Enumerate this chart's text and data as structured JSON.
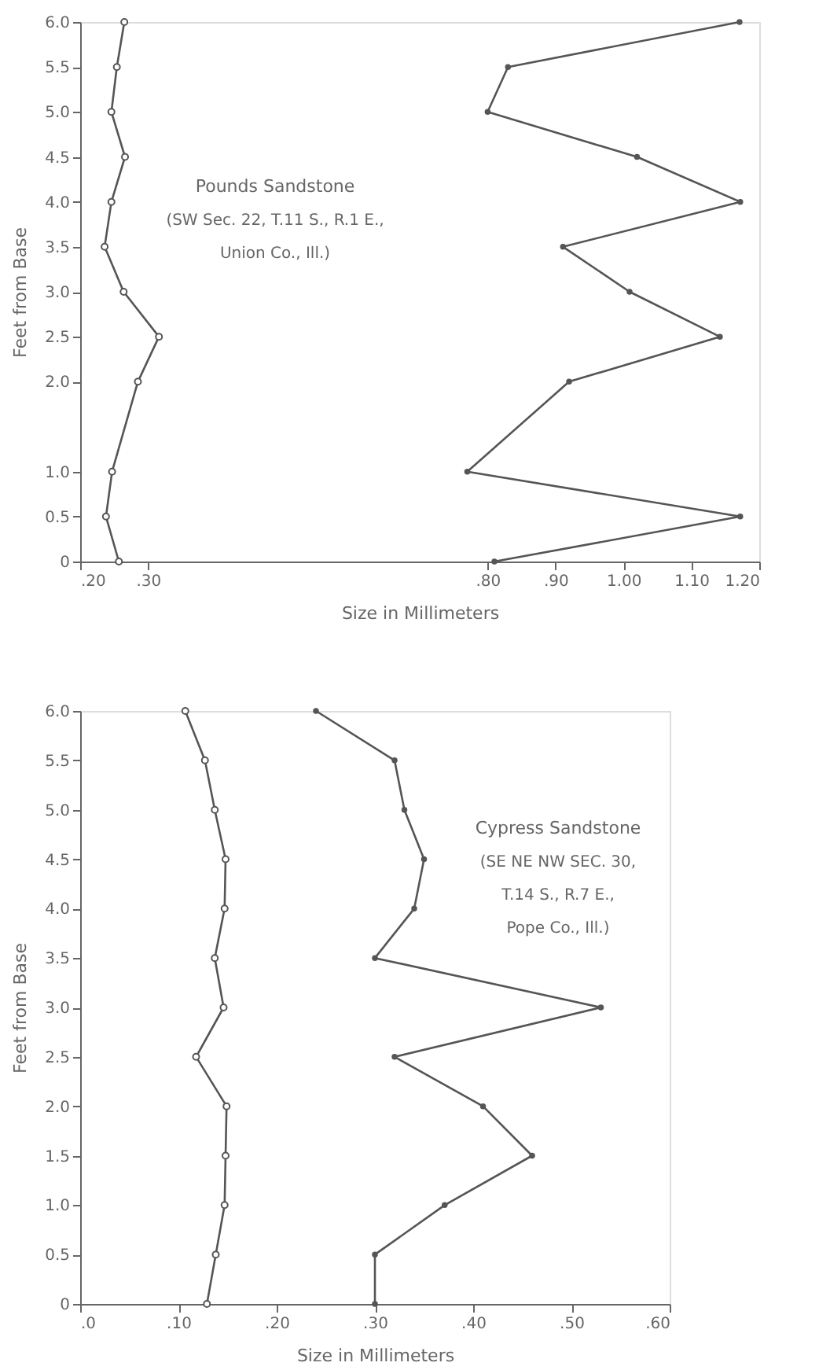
{
  "chart_data": [
    {
      "type": "line",
      "xlabel": "Size in Millimeters",
      "ylabel": "Feet from Base",
      "annotations": [
        "Pounds Sandstone",
        "(SW Sec. 22, T.11 S., R.1 E.,",
        "Union Co., Ill.)"
      ],
      "xlim": [
        0.2,
        1.2
      ],
      "xticks": [
        {
          "value": 0.2,
          "label": ".20"
        },
        {
          "value": 0.3,
          "label": ".30"
        },
        {
          "value": 0.8,
          "label": ".80"
        },
        {
          "value": 0.9,
          "label": ".90"
        },
        {
          "value": 1.0,
          "label": "1.00"
        },
        {
          "value": 1.1,
          "label": "1.10"
        },
        {
          "value": 1.2,
          "label": "1.20"
        }
      ],
      "ylim": [
        0,
        6
      ],
      "yticks": [
        0,
        {
          "value": 0.5,
          "label": "0.5"
        },
        {
          "value": 1,
          "label": "1.0"
        },
        {
          "value": 2,
          "label": "2.0"
        },
        {
          "value": 2.5,
          "label": "2.5"
        },
        {
          "value": 3,
          "label": "3.0"
        },
        {
          "value": 3.5,
          "label": "3.5"
        },
        {
          "value": 4,
          "label": "4.0"
        },
        {
          "value": 4.5,
          "label": "4.5"
        },
        {
          "value": 5,
          "label": "5.0"
        },
        {
          "value": 5.5,
          "label": "5.5"
        },
        {
          "value": 6,
          "label": "6.0"
        }
      ],
      "grid": false,
      "line_style": "solid",
      "series": [
        {
          "color": "#555555",
          "marker": "circle",
          "x": [
            0.257,
            0.238,
            0.247,
            0.285,
            0.316,
            0.264,
            0.236,
            0.246,
            0.266,
            0.246,
            0.254,
            0.265
          ],
          "values": [
            0,
            0.5,
            1,
            2,
            2.5,
            3,
            3.5,
            4,
            4.5,
            5,
            5.5,
            6
          ]
        },
        {
          "color": "#555555",
          "marker": "star",
          "x": [
            0.81,
            1.172,
            0.77,
            0.92,
            1.142,
            1.009,
            0.911,
            1.172,
            1.02,
            0.8,
            0.83,
            1.171
          ],
          "values": [
            0,
            0.5,
            1,
            2,
            2.5,
            3,
            3.5,
            4,
            4.5,
            5,
            5.5,
            6
          ]
        }
      ]
    },
    {
      "type": "line",
      "xlabel": "Size in Millimeters",
      "ylabel": "Feet from Base",
      "annotations": [
        "Cypress Sandstone",
        "(SE NE NW  SEC. 30,",
        "T.14 S., R.7 E.,",
        "Pope Co., Ill.)"
      ],
      "xlim": [
        0,
        0.6
      ],
      "xticks": [
        {
          "value": 0,
          "label": ".0"
        },
        {
          "value": 0.1,
          "label": ".10"
        },
        {
          "value": 0.2,
          "label": ".20"
        },
        {
          "value": 0.3,
          "label": ".30"
        },
        {
          "value": 0.4,
          "label": ".40"
        },
        {
          "value": 0.5,
          "label": ".50"
        },
        {
          "value": 0.6,
          "label": ".60"
        }
      ],
      "ylim": [
        0,
        6
      ],
      "yticks": [
        0,
        {
          "value": 0.5,
          "label": "0.5"
        },
        {
          "value": 1,
          "label": "1.0"
        },
        {
          "value": 1.5,
          "label": "1.5"
        },
        {
          "value": 2,
          "label": "2.0"
        },
        {
          "value": 2.5,
          "label": "2.5"
        },
        {
          "value": 3,
          "label": "3.0"
        },
        {
          "value": 3.5,
          "label": "3.5"
        },
        {
          "value": 4,
          "label": "4.0"
        },
        {
          "value": 4.5,
          "label": "4.5"
        },
        {
          "value": 5,
          "label": "5.0"
        },
        {
          "value": 5.5,
          "label": "5.5"
        },
        {
          "value": 6,
          "label": "6.0"
        }
      ],
      "grid": false,
      "line_style": "solid",
      "series": [
        {
          "color": "#555555",
          "marker": "circle",
          "x": [
            0.129,
            0.138,
            0.147,
            0.148,
            0.149,
            0.118,
            0.146,
            0.137,
            0.147,
            0.148,
            0.137,
            0.127,
            0.107
          ],
          "values": [
            0,
            0.5,
            1,
            1.5,
            2,
            2.5,
            3,
            3.5,
            4,
            4.5,
            5,
            5.5,
            6
          ]
        },
        {
          "color": "#555555",
          "marker": "star",
          "x": [
            0.3,
            0.3,
            0.371,
            0.46,
            0.41,
            0.32,
            0.53,
            0.3,
            0.34,
            0.35,
            0.33,
            0.32,
            0.24
          ],
          "values": [
            0,
            0.5,
            1,
            1.5,
            2,
            2.5,
            3,
            3.5,
            4,
            4.5,
            5,
            5.5,
            6
          ]
        }
      ]
    }
  ]
}
